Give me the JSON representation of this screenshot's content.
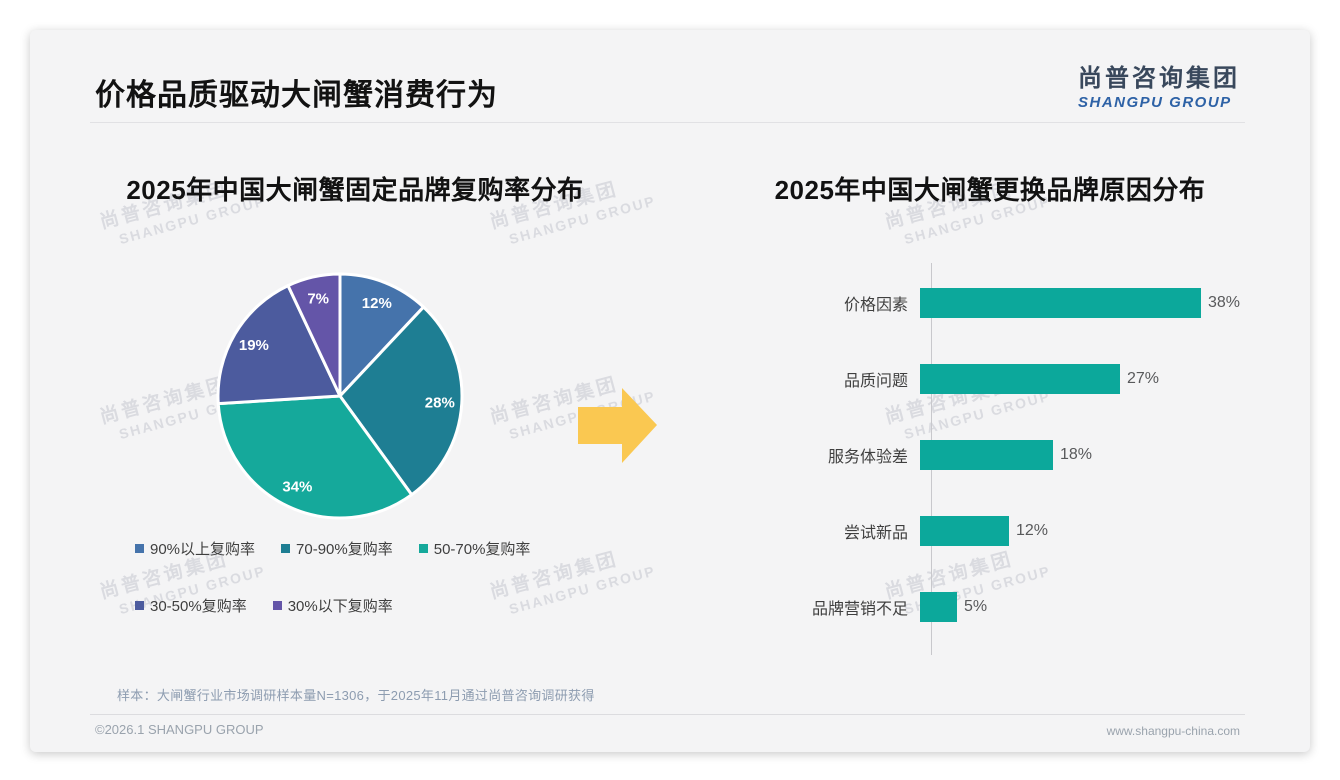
{
  "page": {
    "title": "价格品质驱动大闸蟹消费行为",
    "logo": {
      "cn": "尚普咨询集团",
      "en": "SHANGPU GROUP"
    },
    "watermark": {
      "line1": "尚普咨询集团",
      "line2": "SHANGPU GROUP"
    },
    "note": "样本：大闸蟹行业市场调研样本量N=1306，于2025年11月通过尚普咨询调研获得",
    "footer": {
      "left": "©2026.1 SHANGPU GROUP",
      "right": "www.shangpu-china.com"
    }
  },
  "colors": {
    "arrow": "#fac851",
    "bar": "#0ca89b",
    "card_bg": "#f4f4f5"
  },
  "chart_data": [
    {
      "type": "pie",
      "title": "2025年中国大闸蟹固定品牌复购率分布",
      "labels": [
        "90%以上复购率",
        "70-90%复购率",
        "50-70%复购率",
        "30-50%复购率",
        "30%以下复购率"
      ],
      "values": [
        12,
        28,
        34,
        19,
        7
      ],
      "data_labels": [
        "12%",
        "28%",
        "34%",
        "19%",
        "7%"
      ],
      "colors": [
        "#4573ab",
        "#1e7e93",
        "#15a99b",
        "#4c5b9e",
        "#6455a8"
      ],
      "start_angle_deg": 0,
      "direction": "clockwise",
      "legend_position": "bottom"
    },
    {
      "type": "bar",
      "title": "2025年中国大闸蟹更换品牌原因分布",
      "orientation": "horizontal",
      "categories": [
        "价格因素",
        "品质问题",
        "服务体验差",
        "尝试新品",
        "品牌营销不足"
      ],
      "values": [
        38,
        27,
        18,
        12,
        5
      ],
      "data_labels": [
        "38%",
        "27%",
        "18%",
        "12%",
        "5%"
      ],
      "xlim": [
        0,
        40
      ],
      "grid": false,
      "bar_color": "#0ca89b"
    }
  ]
}
